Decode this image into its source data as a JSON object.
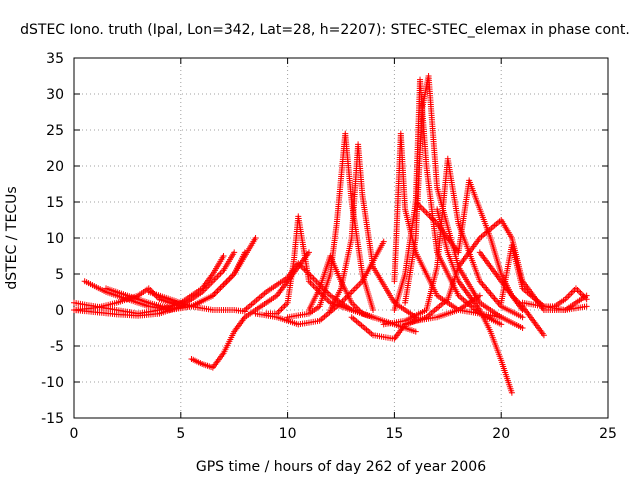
{
  "chart_data": {
    "type": "scatter",
    "title": "dSTEC Iono. truth (Ipal, Lon=342, Lat=28, h=2207): STEC-STEC_elemax in phase cont.",
    "xlabel": "GPS time / hours of day 262 of year 2006",
    "ylabel": "dSTEC  / TECUs",
    "xlim": [
      0,
      25
    ],
    "ylim": [
      -15,
      35
    ],
    "xticks": [
      0,
      5,
      10,
      15,
      20,
      25
    ],
    "yticks": [
      -15,
      -10,
      -5,
      0,
      5,
      10,
      15,
      20,
      25,
      30,
      35
    ],
    "grid": true,
    "marker": "+",
    "color": "#ff0000",
    "series": [
      {
        "x": [
          0.0,
          1.0,
          2.0,
          3.0,
          4.0,
          5.0,
          6.0,
          6.5,
          7.0
        ],
        "y": [
          1.0,
          0.5,
          0.0,
          -0.5,
          0.0,
          1.0,
          3.0,
          5.0,
          7.5
        ]
      },
      {
        "x": [
          0.0,
          1.0,
          2.0,
          3.0,
          4.0,
          5.0,
          6.0,
          7.0,
          7.5
        ],
        "y": [
          0.0,
          -0.3,
          -0.6,
          -0.8,
          -0.5,
          0.5,
          2.5,
          5.5,
          8.0
        ]
      },
      {
        "x": [
          0.5,
          1.5,
          2.5,
          3.5,
          4.5,
          5.5,
          6.5,
          7.5,
          8.0
        ],
        "y": [
          4.0,
          2.5,
          1.5,
          0.5,
          0.0,
          0.5,
          2.0,
          5.0,
          8.0
        ]
      },
      {
        "x": [
          1.5,
          2.5,
          3.5,
          4.5,
          5.5,
          6.5,
          7.5,
          8.5
        ],
        "y": [
          3.0,
          2.0,
          1.0,
          0.2,
          0.5,
          2.0,
          5.0,
          10.0
        ]
      },
      {
        "x": [
          0.0,
          1.0,
          2.0,
          3.0,
          3.5,
          4.0,
          5.0
        ],
        "y": [
          0.0,
          0.3,
          1.0,
          2.0,
          3.0,
          1.5,
          0.5
        ]
      },
      {
        "x": [
          3.5,
          4.5,
          5.5,
          6.5,
          7.5,
          8.0
        ],
        "y": [
          2.5,
          1.5,
          0.5,
          0.0,
          0.0,
          -0.2
        ]
      },
      {
        "x": [
          5.5,
          6.0,
          6.5,
          7.0,
          7.5,
          8.0,
          8.5,
          9.0,
          9.5,
          10.0,
          10.5,
          11.0
        ],
        "y": [
          -6.8,
          -7.5,
          -8.0,
          -6.0,
          -3.0,
          -1.0,
          0.0,
          1.0,
          2.0,
          4.0,
          6.0,
          8.0
        ]
      },
      {
        "x": [
          8.0,
          9.0,
          10.0,
          10.5,
          11.0,
          12.0,
          13.0,
          14.0
        ],
        "y": [
          0.0,
          2.5,
          4.5,
          6.5,
          5.0,
          2.0,
          0.0,
          -1.0
        ]
      },
      {
        "x": [
          8.5,
          9.5,
          10.5,
          11.5,
          12.5,
          13.5,
          14.5
        ],
        "y": [
          -0.5,
          -1.0,
          -2.0,
          -1.5,
          1.0,
          4.0,
          9.5
        ]
      },
      {
        "x": [
          9.0,
          9.5,
          10.0,
          10.3,
          10.5,
          11.0,
          12.0,
          13.0,
          14.0
        ],
        "y": [
          -0.5,
          -0.5,
          1.0,
          7.0,
          13.0,
          4.0,
          1.0,
          0.0,
          -1.0
        ]
      },
      {
        "x": [
          10.0,
          11.0,
          11.5,
          12.0,
          12.3,
          12.7,
          13.0,
          13.5,
          14.0
        ],
        "y": [
          -1.0,
          -0.5,
          0.5,
          5.0,
          12.0,
          24.5,
          15.0,
          5.0,
          0.0
        ]
      },
      {
        "x": [
          11.0,
          11.5,
          12.0,
          12.5,
          13.0,
          13.5,
          14.0,
          15.0,
          16.0
        ],
        "y": [
          0.0,
          3.0,
          7.5,
          4.0,
          1.0,
          -0.5,
          -1.0,
          -2.0,
          -3.0
        ]
      },
      {
        "x": [
          12.0,
          12.5,
          13.0,
          13.3,
          13.5,
          14.0,
          15.0,
          16.0
        ],
        "y": [
          0.0,
          3.0,
          10.0,
          23.0,
          16.0,
          6.0,
          1.0,
          -1.0
        ]
      },
      {
        "x": [
          13.0,
          14.0,
          15.0,
          15.5,
          16.0,
          17.0,
          18.0,
          19.0
        ],
        "y": [
          -1.0,
          -3.5,
          -4.0,
          -2.0,
          -1.5,
          -1.0,
          0.0,
          2.0
        ]
      },
      {
        "x": [
          15.0,
          15.3,
          15.5,
          16.0,
          17.0,
          18.0,
          19.0,
          20.0
        ],
        "y": [
          4.0,
          24.5,
          14.0,
          8.0,
          2.0,
          0.0,
          -0.5,
          -1.0
        ]
      },
      {
        "x": [
          15.0,
          15.5,
          16.0,
          16.2,
          16.5,
          17.0,
          18.0,
          19.0,
          20.0
        ],
        "y": [
          0.0,
          5.0,
          15.0,
          32.0,
          20.0,
          8.0,
          2.0,
          -0.5,
          -2.0
        ]
      },
      {
        "x": [
          15.5,
          16.0,
          16.3,
          16.6,
          17.0,
          18.0,
          19.0,
          20.0,
          21.0
        ],
        "y": [
          1.0,
          10.0,
          28.0,
          32.5,
          17.0,
          6.0,
          1.0,
          -1.0,
          -2.5
        ]
      },
      {
        "x": [
          14.5,
          15.5,
          16.5,
          17.0,
          17.5,
          18.0,
          19.0,
          20.0,
          21.0
        ],
        "y": [
          -2.0,
          -1.5,
          0.0,
          6.0,
          21.0,
          12.0,
          4.0,
          0.5,
          -1.0
        ]
      },
      {
        "x": [
          15.5,
          16.5,
          17.5,
          18.0,
          19.0,
          20.0,
          20.5,
          21.0,
          22.0
        ],
        "y": [
          -2.0,
          -1.0,
          1.5,
          6.0,
          10.0,
          12.5,
          10.0,
          4.0,
          0.0
        ]
      },
      {
        "x": [
          16.0,
          17.0,
          18.0,
          18.5,
          19.0,
          19.5,
          20.0,
          20.5,
          21.0
        ],
        "y": [
          15.0,
          12.0,
          8.0,
          18.0,
          14.0,
          10.0,
          5.0,
          2.0,
          0.0
        ]
      },
      {
        "x": [
          17.0,
          17.5,
          18.0,
          18.5,
          19.0,
          19.5,
          20.0,
          20.5
        ],
        "y": [
          14.0,
          8.0,
          4.0,
          2.0,
          0.0,
          -3.0,
          -7.0,
          -11.5
        ]
      },
      {
        "x": [
          19.0,
          19.5,
          20.0,
          20.5,
          21.0,
          21.5,
          22.0
        ],
        "y": [
          8.0,
          6.0,
          4.0,
          2.0,
          0.5,
          -1.5,
          -3.5
        ]
      },
      {
        "x": [
          20.0,
          20.5,
          21.0,
          22.0,
          23.0,
          24.0
        ],
        "y": [
          1.0,
          9.0,
          3.0,
          0.5,
          0.0,
          0.5
        ]
      },
      {
        "x": [
          21.0,
          22.0,
          22.5,
          23.0,
          23.5,
          24.0
        ],
        "y": [
          1.0,
          0.5,
          0.5,
          1.5,
          3.0,
          1.5
        ]
      },
      {
        "x": [
          22.0,
          23.0,
          23.5,
          24.0
        ],
        "y": [
          0.0,
          0.0,
          1.0,
          2.0
        ]
      }
    ]
  }
}
